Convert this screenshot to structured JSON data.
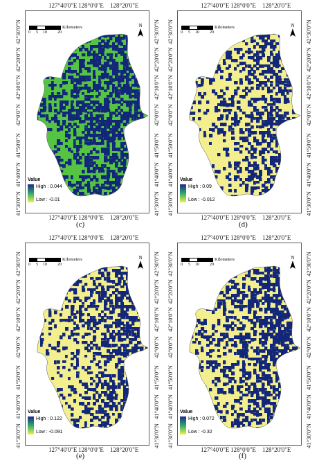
{
  "panels": [
    {
      "id": "c",
      "caption": "(c)",
      "legend_title": "Value",
      "legend_high": "High : 0.044",
      "legend_low": "Low : -0.01",
      "palette": "green"
    },
    {
      "id": "d",
      "caption": "(d)",
      "legend_title": "Value",
      "legend_high": "High : 0.09",
      "legend_low": "Low : -0.012",
      "palette": "yellow"
    },
    {
      "id": "e",
      "caption": "(e)",
      "legend_title": "Value",
      "legend_high": "High : 0.122",
      "legend_low": "Low : -0.091",
      "palette": "yellow"
    },
    {
      "id": "f",
      "caption": "(f)",
      "legend_title": "Value",
      "legend_high": "High : 0.072",
      "legend_low": "Low : -0.32",
      "palette": "yellow"
    }
  ],
  "axes": {
    "top_lon": [
      "127°40'0\"E",
      "128°0'0\"E",
      "128°20'0\"E"
    ],
    "bottom_lon": [
      "127°40'0\"E",
      "128°0'0\"E",
      "128°20'0\"E"
    ],
    "lat": [
      "42°30'0\"N",
      "42°20'0\"N",
      "42°10'0\"N",
      "42°0'0\"N",
      "41°50'0\"N",
      "41°40'0\"N",
      "41°30'0\"N"
    ]
  },
  "scalebar": {
    "ticks": [
      "0",
      "5",
      "10",
      "20"
    ],
    "unit": "Kilometers"
  },
  "north": "N",
  "colors": {
    "dark_blue": "#13277a",
    "green": "#56c443",
    "yellow": "#f3ef8f",
    "teal": "#2a8f6a",
    "ramp_top": "#1f2a8a",
    "ramp_mid": "#2fa86b",
    "ramp_bottom": "#e8f54a"
  }
}
